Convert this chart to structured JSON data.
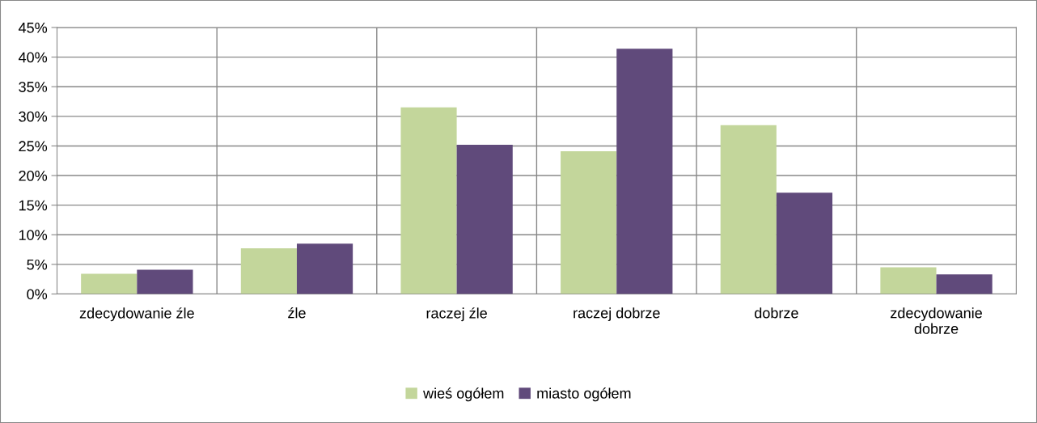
{
  "chart_data": {
    "type": "bar",
    "categories": [
      "zdecydowanie źle",
      "źle",
      "raczej źle",
      "raczej dobrze",
      "dobrze",
      "zdecydowanie dobrze"
    ],
    "series": [
      {
        "name": "wieś ogółem",
        "color": "#c3d69b",
        "values": [
          3.4,
          7.7,
          31.5,
          24.1,
          28.5,
          4.5
        ]
      },
      {
        "name": "miasto ogółem",
        "color": "#604a7b",
        "values": [
          4.1,
          8.5,
          25.2,
          41.4,
          17.1,
          3.3
        ]
      }
    ],
    "ylim": [
      0,
      45
    ],
    "yticks": [
      {
        "value": 0,
        "label": "0%"
      },
      {
        "value": 5,
        "label": "5%"
      },
      {
        "value": 10,
        "label": "10%"
      },
      {
        "value": 15,
        "label": "15%"
      },
      {
        "value": 20,
        "label": "20%"
      },
      {
        "value": 25,
        "label": "25%"
      },
      {
        "value": 30,
        "label": "30%"
      },
      {
        "value": 35,
        "label": "35%"
      },
      {
        "value": 40,
        "label": "40%"
      },
      {
        "value": 45,
        "label": "45%"
      }
    ],
    "grid": true,
    "legend": "bottom"
  }
}
